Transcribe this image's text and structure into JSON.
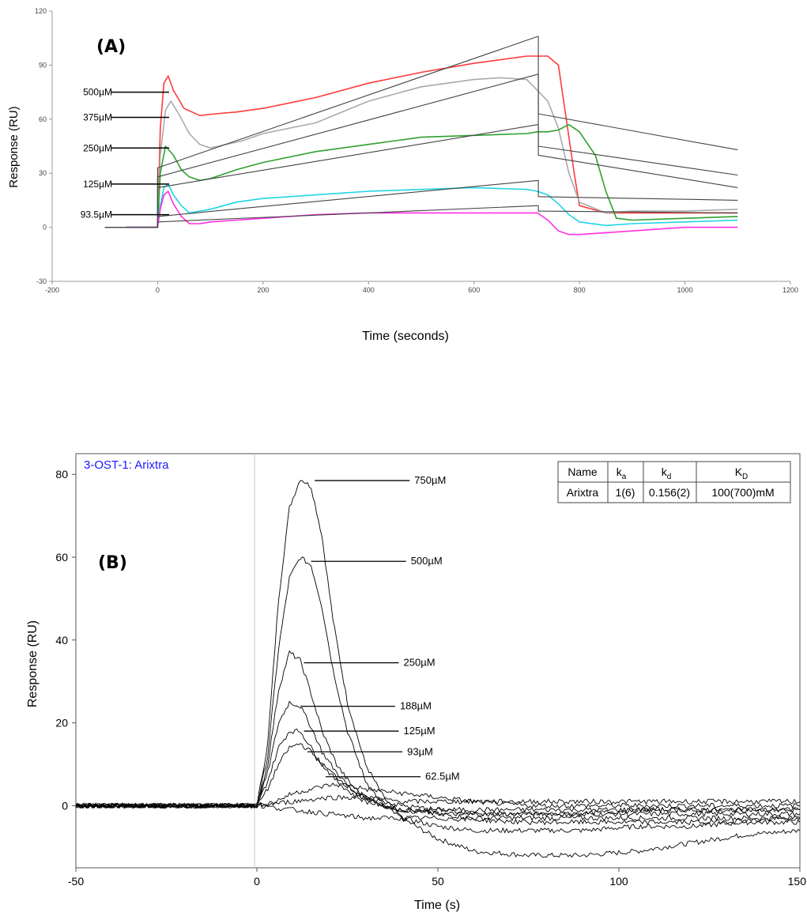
{
  "chart_data": [
    {
      "type": "line",
      "panel_label": "(A)",
      "title": "",
      "xlabel": "Time (seconds)",
      "ylabel": "Response (RU)",
      "xlim": [
        -200,
        1200
      ],
      "ylim": [
        -30,
        120
      ],
      "xticks": [
        "-200",
        "0",
        "200",
        "400",
        "600",
        "800",
        "1000",
        "1200"
      ],
      "yticks": [
        "-30",
        "0",
        "30",
        "60",
        "90",
        "120"
      ],
      "grid": false,
      "series": [
        {
          "color": "#ff3b3b",
          "x": [
            -60,
            0,
            5,
            12,
            20,
            30,
            50,
            80,
            110,
            150,
            200,
            300,
            400,
            500,
            600,
            700,
            720,
            740,
            760,
            770,
            790,
            800,
            850,
            900,
            1000,
            1100
          ],
          "y": [
            0,
            0,
            55,
            80,
            84,
            76,
            66,
            62,
            63,
            64,
            66,
            72,
            80,
            86,
            91,
            95,
            95,
            95,
            90,
            70,
            30,
            12,
            8,
            8,
            8,
            8
          ]
        },
        {
          "color": "#aaaaaa",
          "x": [
            -60,
            0,
            5,
            15,
            25,
            40,
            60,
            80,
            100,
            130,
            160,
            200,
            300,
            400,
            500,
            600,
            650,
            700,
            720,
            740,
            760,
            780,
            800,
            850,
            900,
            1000,
            1100
          ],
          "y": [
            0,
            0,
            40,
            65,
            70,
            63,
            52,
            46,
            44,
            46,
            48,
            52,
            58,
            70,
            78,
            82,
            83,
            82,
            76,
            70,
            55,
            30,
            14,
            8,
            9,
            9,
            10
          ]
        },
        {
          "color": "#2ea02e",
          "x": [
            -60,
            0,
            5,
            15,
            30,
            45,
            60,
            80,
            100,
            150,
            200,
            300,
            400,
            500,
            600,
            700,
            720,
            740,
            760,
            780,
            800,
            830,
            850,
            870,
            900,
            1000,
            1100
          ],
          "y": [
            0,
            0,
            30,
            45,
            40,
            32,
            28,
            26,
            27,
            32,
            36,
            42,
            46,
            50,
            51,
            52,
            53,
            53,
            54,
            57,
            53,
            40,
            20,
            5,
            4,
            5,
            6
          ]
        },
        {
          "color": "#1fd4e6",
          "x": [
            -60,
            0,
            5,
            12,
            20,
            30,
            45,
            60,
            80,
            100,
            150,
            200,
            300,
            400,
            500,
            600,
            700,
            720,
            740,
            760,
            780,
            800,
            850,
            900,
            1000,
            1100
          ],
          "y": [
            0,
            0,
            12,
            22,
            24,
            18,
            12,
            8,
            9,
            10,
            14,
            16,
            18,
            20,
            21,
            22,
            21,
            20,
            18,
            13,
            7,
            3,
            1,
            2,
            3,
            4
          ]
        },
        {
          "color": "#ff2ee0",
          "x": [
            -60,
            0,
            5,
            12,
            20,
            30,
            45,
            60,
            80,
            100,
            150,
            200,
            300,
            400,
            500,
            600,
            700,
            720,
            740,
            760,
            780,
            800,
            850,
            900,
            1000,
            1100
          ],
          "y": [
            0,
            0,
            10,
            18,
            20,
            13,
            6,
            2,
            2,
            3,
            4,
            5,
            7,
            8,
            8,
            8,
            8,
            8,
            4,
            -2,
            -4,
            -4,
            -3,
            -2,
            0,
            0
          ]
        },
        {
          "color": "#444444",
          "x": [
            -100,
            0,
            0,
            722,
            722,
            1100
          ],
          "y": [
            0,
            0,
            33,
            106,
            63,
            43
          ]
        },
        {
          "color": "#444444",
          "x": [
            -100,
            0,
            0,
            722,
            722,
            1100
          ],
          "y": [
            0,
            0,
            28,
            85,
            45,
            29
          ]
        },
        {
          "color": "#444444",
          "x": [
            -100,
            0,
            0,
            722,
            722,
            1100
          ],
          "y": [
            0,
            0,
            22,
            57,
            40,
            22
          ]
        },
        {
          "color": "#444444",
          "x": [
            -100,
            0,
            0,
            722,
            722,
            1100
          ],
          "y": [
            0,
            0,
            6,
            26,
            17,
            15
          ]
        },
        {
          "color": "#444444",
          "x": [
            -100,
            0,
            0,
            722,
            722,
            1100
          ],
          "y": [
            0,
            0,
            3,
            12,
            9,
            8
          ]
        }
      ],
      "annotations": [
        {
          "text": "500µM",
          "y": 75
        },
        {
          "text": "375µM",
          "y": 61
        },
        {
          "text": "250µM",
          "y": 44
        },
        {
          "text": "125µM",
          "y": 24
        },
        {
          "text": "93.5µM",
          "y": 7
        }
      ]
    },
    {
      "type": "line",
      "panel_label": "(B)",
      "title": "3-OST-1: Arixtra",
      "xlabel": "Time (s)",
      "ylabel": "Response (RU)",
      "xlim": [
        -50,
        150
      ],
      "ylim": [
        -15,
        85
      ],
      "xticks": [
        "-50",
        "0",
        "50",
        "100",
        "150"
      ],
      "yticks": [
        "0",
        "20",
        "40",
        "60",
        "80"
      ],
      "grid": false,
      "series": [
        {
          "color": "#000000",
          "x": [
            -50,
            -20,
            0,
            3,
            6,
            9,
            12,
            15,
            18,
            21,
            25,
            30,
            35,
            40,
            50,
            60,
            75,
            90,
            105,
            120,
            135,
            150
          ],
          "y": [
            0,
            0,
            0,
            15,
            50,
            72,
            79,
            77,
            65,
            45,
            25,
            10,
            2,
            -3,
            -8,
            -11,
            -12,
            -12,
            -11,
            -9,
            -7,
            -6
          ]
        },
        {
          "color": "#000000",
          "x": [
            -50,
            -20,
            0,
            3,
            6,
            9,
            12,
            15,
            18,
            21,
            25,
            30,
            35,
            40,
            50,
            60,
            75,
            90,
            105,
            120,
            135,
            150
          ],
          "y": [
            0,
            0,
            0,
            12,
            38,
            55,
            60,
            58,
            48,
            33,
            18,
            6,
            0,
            -3,
            -5,
            -6,
            -6,
            -6,
            -5,
            -5,
            -4,
            -4
          ]
        },
        {
          "color": "#000000",
          "x": [
            -50,
            -20,
            0,
            3,
            6,
            9,
            12,
            15,
            18,
            22,
            26,
            30,
            35,
            40,
            50,
            60,
            75,
            90,
            105,
            120,
            135,
            150
          ],
          "y": [
            0,
            0,
            0,
            10,
            28,
            37,
            35,
            27,
            18,
            10,
            5,
            2,
            0,
            -1,
            -2,
            -3,
            -3,
            -3,
            -3,
            -3,
            -3,
            -3
          ]
        },
        {
          "color": "#000000",
          "x": [
            -50,
            -20,
            0,
            3,
            6,
            9,
            12,
            15,
            18,
            22,
            26,
            30,
            35,
            40,
            50,
            60,
            75,
            90,
            105,
            120,
            135,
            150
          ],
          "y": [
            0,
            0,
            0,
            8,
            20,
            25,
            24,
            19,
            13,
            8,
            4,
            2,
            0,
            -1,
            -2,
            -2,
            -2,
            -2,
            -2,
            -2,
            -2,
            -2
          ]
        },
        {
          "color": "#000000",
          "x": [
            -50,
            -20,
            0,
            3,
            6,
            9,
            12,
            15,
            18,
            22,
            26,
            30,
            35,
            40,
            50,
            60,
            75,
            90,
            105,
            120,
            135,
            150
          ],
          "y": [
            0,
            0,
            0,
            6,
            14,
            18,
            18,
            14,
            10,
            6,
            3,
            1,
            0,
            -1,
            -1,
            -2,
            -2,
            -2,
            -1,
            -1,
            -1,
            -1
          ]
        },
        {
          "color": "#000000",
          "x": [
            -50,
            -20,
            0,
            3,
            6,
            9,
            12,
            15,
            18,
            22,
            26,
            30,
            35,
            40,
            50,
            60,
            75,
            90,
            105,
            120,
            135,
            150
          ],
          "y": [
            0,
            0,
            0,
            4,
            10,
            14,
            15,
            13,
            10,
            7,
            4,
            2,
            1,
            0,
            -1,
            -1,
            -1,
            -1,
            -1,
            -1,
            -1,
            -1
          ]
        },
        {
          "color": "#000000",
          "x": [
            -50,
            -20,
            0,
            5,
            10,
            15,
            20,
            25,
            30,
            40,
            50,
            60,
            75,
            90,
            105,
            120,
            135,
            150
          ],
          "y": [
            0,
            0,
            0,
            1,
            3,
            4,
            5,
            5,
            4,
            3,
            2,
            1,
            0,
            0,
            0,
            0,
            0,
            0
          ]
        },
        {
          "color": "#000000",
          "x": [
            -50,
            -20,
            0,
            10,
            20,
            30,
            40,
            60,
            80,
            100,
            120,
            150
          ],
          "y": [
            0,
            0,
            0,
            1,
            2,
            2,
            1,
            1,
            1,
            1,
            1,
            1
          ]
        },
        {
          "color": "#000000",
          "x": [
            -50,
            -20,
            0,
            10,
            20,
            30,
            50,
            75,
            100,
            125,
            150
          ],
          "y": [
            0,
            0,
            0,
            -1,
            -2,
            -3,
            -3,
            -4,
            -4,
            -4,
            -3
          ]
        }
      ],
      "annotations": [
        {
          "text": "750µM",
          "x": 16,
          "y": 78.5
        },
        {
          "text": "500µM",
          "x": 15,
          "y": 59
        },
        {
          "text": "250µM",
          "x": 13,
          "y": 34.5
        },
        {
          "text": "188µM",
          "x": 12,
          "y": 24
        },
        {
          "text": "125µM",
          "x": 13,
          "y": 18
        },
        {
          "text": "93µM",
          "x": 14,
          "y": 13
        },
        {
          "text": "62.5µM",
          "x": 19,
          "y": 7
        }
      ],
      "table": {
        "headers": [
          "Name",
          "ka",
          "kd",
          "KD"
        ],
        "header_main": [
          "k",
          "k",
          "K"
        ],
        "header_sub": [
          "a",
          "d",
          "D"
        ],
        "rows": [
          [
            "Arixtra",
            "1(6)",
            "0.156(2)",
            "100(700)mM"
          ]
        ]
      },
      "title_color": "#1a1aff"
    }
  ]
}
